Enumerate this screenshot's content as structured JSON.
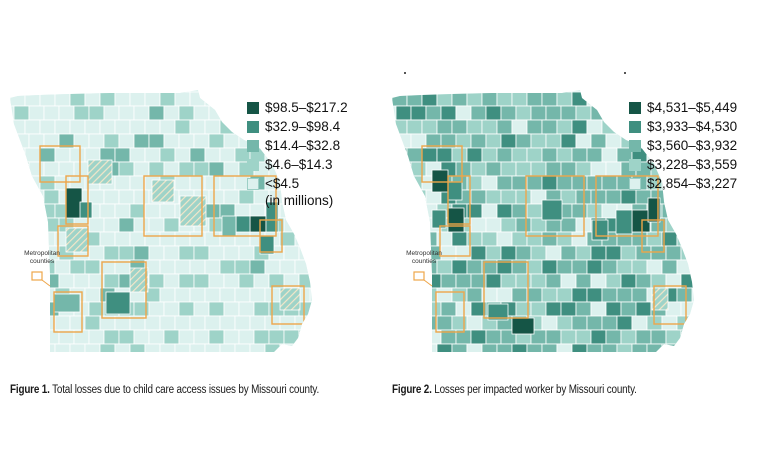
{
  "colors": {
    "c0": "#dcf1ee",
    "c1": "#9ed3c8",
    "c2": "#74b7aa",
    "c3": "#3f8f80",
    "c4": "#155546",
    "outline": "#eea64a",
    "hatch": "#f3e6c9"
  },
  "metro_label": "Metropolitan counties",
  "figure1": {
    "caption_label": "Figure 1.",
    "caption_text": "Total losses due to child care access issues by Missouri county.",
    "legend": [
      {
        "label": "$98.5–$217.2",
        "color": "#155546"
      },
      {
        "label": "$32.9–$98.4",
        "color": "#3f8f80"
      },
      {
        "label": "$14.4–$32.8",
        "color": "#74b7aa"
      },
      {
        "label": "$4.6–$14.3",
        "color": "#9ed3c8"
      },
      {
        "label": "<$4.5",
        "color": "#dcf1ee"
      }
    ],
    "legend_note": "(in millions)"
  },
  "figure2": {
    "caption_label": "Figure 2.",
    "caption_text": "Losses per impacted worker by Missouri county.",
    "legend": [
      {
        "label": "$4,531–$5,449",
        "color": "#155546"
      },
      {
        "label": "$3,933–$4,530",
        "color": "#3f8f80"
      },
      {
        "label": "$3,560–$3,932",
        "color": "#74b7aa"
      },
      {
        "label": "$3,228–$3,559",
        "color": "#9ed3c8"
      },
      {
        "label": "$2,854–$3,227",
        "color": "#dcf1ee"
      }
    ]
  }
}
